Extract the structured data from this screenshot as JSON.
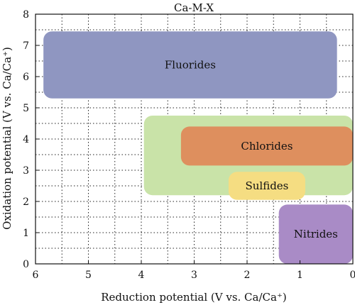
{
  "chart_data": {
    "type": "range-box",
    "title": "Ca-M-X",
    "xlabel": "Reduction potential (V vs. Ca/Ca⁺)",
    "ylabel": "Oxidation potential (V vs. Ca/Ca⁺)",
    "xlim": [
      6,
      0
    ],
    "ylim": [
      0,
      8
    ],
    "x_ticks": [
      6,
      5,
      4,
      3,
      2,
      1,
      0
    ],
    "y_ticks": [
      0,
      1,
      2,
      3,
      4,
      5,
      6,
      7,
      8
    ],
    "grid": true,
    "regions": [
      {
        "label": "Fluorides",
        "reduction_range": [
          5.85,
          0.3
        ],
        "oxidation_range": [
          5.3,
          7.45
        ],
        "color": "#8f96c1"
      },
      {
        "label": "",
        "reduction_range": [
          3.95,
          0.0
        ],
        "oxidation_range": [
          2.2,
          4.75
        ],
        "color": "#c9e3a8"
      },
      {
        "label": "Chlorides",
        "reduction_range": [
          3.25,
          0.0
        ],
        "oxidation_range": [
          3.15,
          4.4
        ],
        "color": "#de8f5e"
      },
      {
        "label": "Sulfides",
        "reduction_range": [
          2.35,
          0.9
        ],
        "oxidation_range": [
          2.05,
          2.95
        ],
        "color": "#f5dd82"
      },
      {
        "label": "Nitrides",
        "reduction_range": [
          1.4,
          0.0
        ],
        "oxidation_range": [
          0.0,
          1.9
        ],
        "color": "#a98bc6"
      }
    ]
  }
}
